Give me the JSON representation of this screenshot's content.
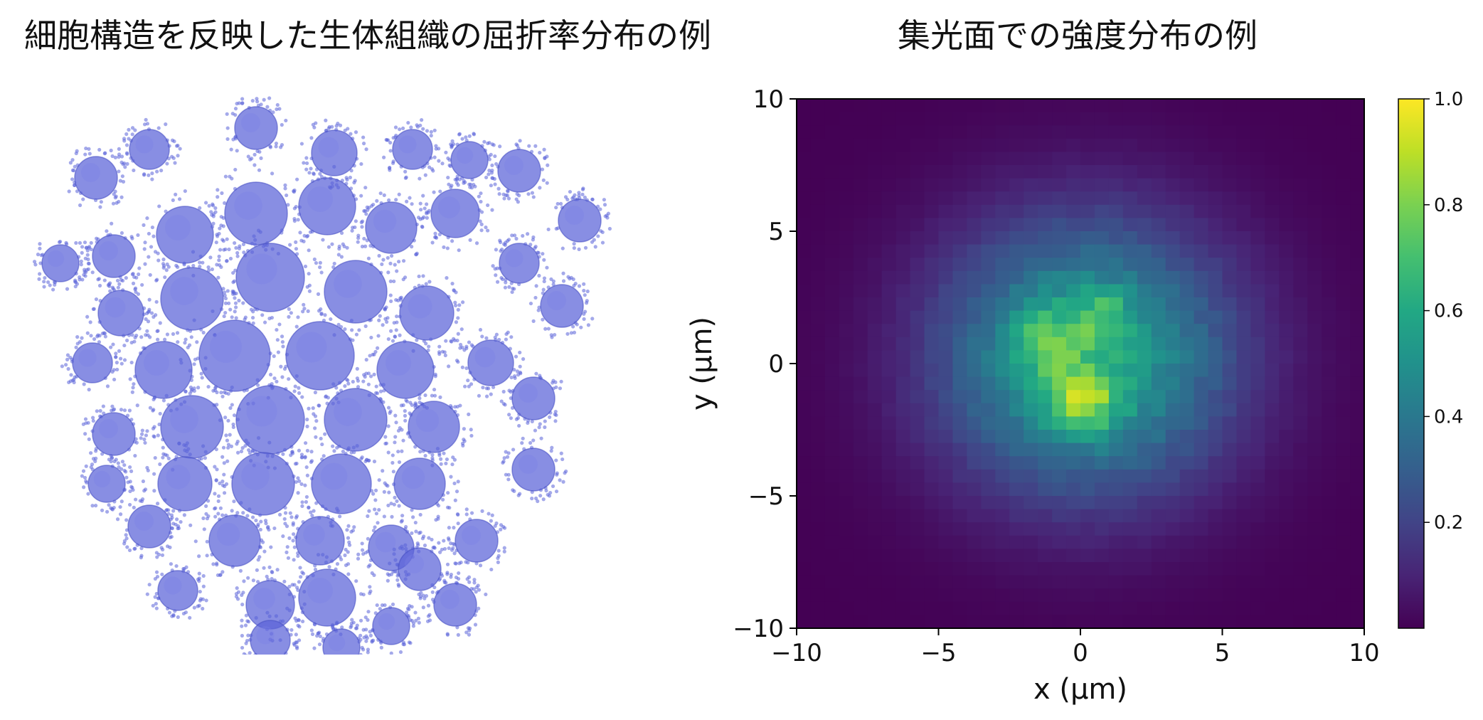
{
  "left_panel": {
    "title": "細胞構造を反映した生体組織の屈折率分布の例"
  },
  "chart_data": {
    "type": "heatmap",
    "title": "集光面での強度分布の例",
    "xlabel": "x (µm)",
    "ylabel": "y (µm)",
    "xlim": [
      -10,
      10
    ],
    "ylim": [
      -10,
      10
    ],
    "x_ticks": [
      "−10",
      "−5",
      "0",
      "5",
      "10"
    ],
    "y_ticks": [
      "−10",
      "−5",
      "0",
      "5",
      "10"
    ],
    "colormap": "viridis",
    "colorbar": {
      "range": [
        0.0,
        1.0
      ],
      "ticks": [
        "0.2",
        "0.4",
        "0.6",
        "0.8",
        "1.0"
      ]
    },
    "grid": false,
    "description_values": {
      "peak_intensity": 1.0,
      "peak_location": [
        0.1,
        -1.4
      ]
    }
  },
  "colors": {
    "tissue_blue": "#5a63d8",
    "viridis_low": "#440154",
    "viridis_high": "#fde725"
  }
}
